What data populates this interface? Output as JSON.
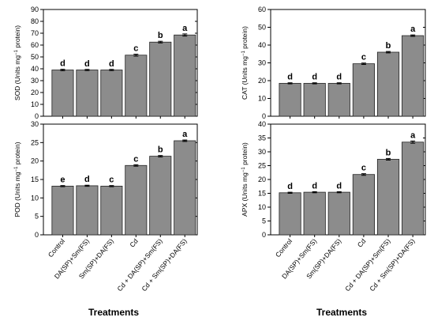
{
  "chart_data": [
    {
      "type": "bar",
      "ylabel_main": "SOD (Units mg",
      "ylabel_sup": "−1",
      "ylabel_tail": " protein)",
      "ylim": [
        0,
        90
      ],
      "yticks": [
        "0",
        "10",
        "20",
        "30",
        "40",
        "50",
        "60",
        "70",
        "80",
        "90"
      ],
      "categories": [
        "Control",
        "DA(SP)+Sm(FS)",
        "Sm(SP)+DA(FS)",
        "Cd",
        "Cd + DA(SP)+Sm(FS)",
        "Cd + Sm(SP)+DA(FS)"
      ],
      "values": [
        39,
        39,
        39,
        51.5,
        62.5,
        68.5
      ],
      "errors": [
        0.6,
        0.5,
        0.5,
        0.8,
        0.7,
        0.9
      ],
      "sig": [
        "d",
        "d",
        "d",
        "c",
        "b",
        "a"
      ],
      "bar_color": "#8c8c8c"
    },
    {
      "type": "bar",
      "ylabel_main": "CAT (Units mg",
      "ylabel_sup": "−1",
      "ylabel_tail": " protein)",
      "ylim": [
        0,
        60
      ],
      "yticks": [
        "0",
        "10",
        "20",
        "30",
        "40",
        "50",
        "60"
      ],
      "categories": [
        "Control",
        "DA(SP)+Sm(FS)",
        "Sm(SP)+DA(FS)",
        "Cd",
        "Cd + DA(SP)+Sm(FS)",
        "Cd + Sm(SP)+DA(FS)"
      ],
      "values": [
        18.5,
        18.5,
        18.5,
        29.5,
        36,
        45.3
      ],
      "errors": [
        0.3,
        0.3,
        0.3,
        0.4,
        0.4,
        0.4
      ],
      "sig": [
        "d",
        "d",
        "d",
        "c",
        "b",
        "a"
      ],
      "bar_color": "#8c8c8c"
    },
    {
      "type": "bar",
      "ylabel_main": "POD (Units mg",
      "ylabel_sup": "−1",
      "ylabel_tail": " protein)",
      "ylim": [
        0,
        30
      ],
      "yticks": [
        "0",
        "5",
        "10",
        "15",
        "20",
        "25",
        "30"
      ],
      "categories": [
        "Control",
        "DA(SP)+Sm(FS)",
        "Sm(SP)+DA(FS)",
        "Cd",
        "Cd + DA(SP)+Sm(FS)",
        "Cd + Sm(SP)+DA(FS)"
      ],
      "values": [
        13.2,
        13.3,
        13.2,
        18.8,
        21.3,
        25.5
      ],
      "errors": [
        0.15,
        0.15,
        0.15,
        0.2,
        0.2,
        0.2
      ],
      "sig": [
        "e",
        "d",
        "c",
        "c",
        "b",
        "a"
      ],
      "bar_color": "#8c8c8c"
    },
    {
      "type": "bar",
      "ylabel_main": "APX (Units mg",
      "ylabel_sup": "−1",
      "ylabel_tail": " protein)",
      "ylim": [
        0,
        40
      ],
      "yticks": [
        "0",
        "5",
        "10",
        "15",
        "20",
        "25",
        "30",
        "35",
        "40"
      ],
      "categories": [
        "Control",
        "DA(SP)+Sm(FS)",
        "Sm(SP)+DA(FS)",
        "Cd",
        "Cd + DA(SP)+Sm(FS)",
        "Cd + Sm(SP)+DA(FS)"
      ],
      "values": [
        15.2,
        15.4,
        15.4,
        21.8,
        27.3,
        33.5
      ],
      "errors": [
        0.2,
        0.2,
        0.2,
        0.3,
        0.3,
        0.4
      ],
      "sig": [
        "d",
        "d",
        "d",
        "c",
        "b",
        "a"
      ],
      "bar_color": "#8c8c8c"
    }
  ],
  "xaxis_title_left": "Treatments",
  "xaxis_title_right": "Treatments"
}
